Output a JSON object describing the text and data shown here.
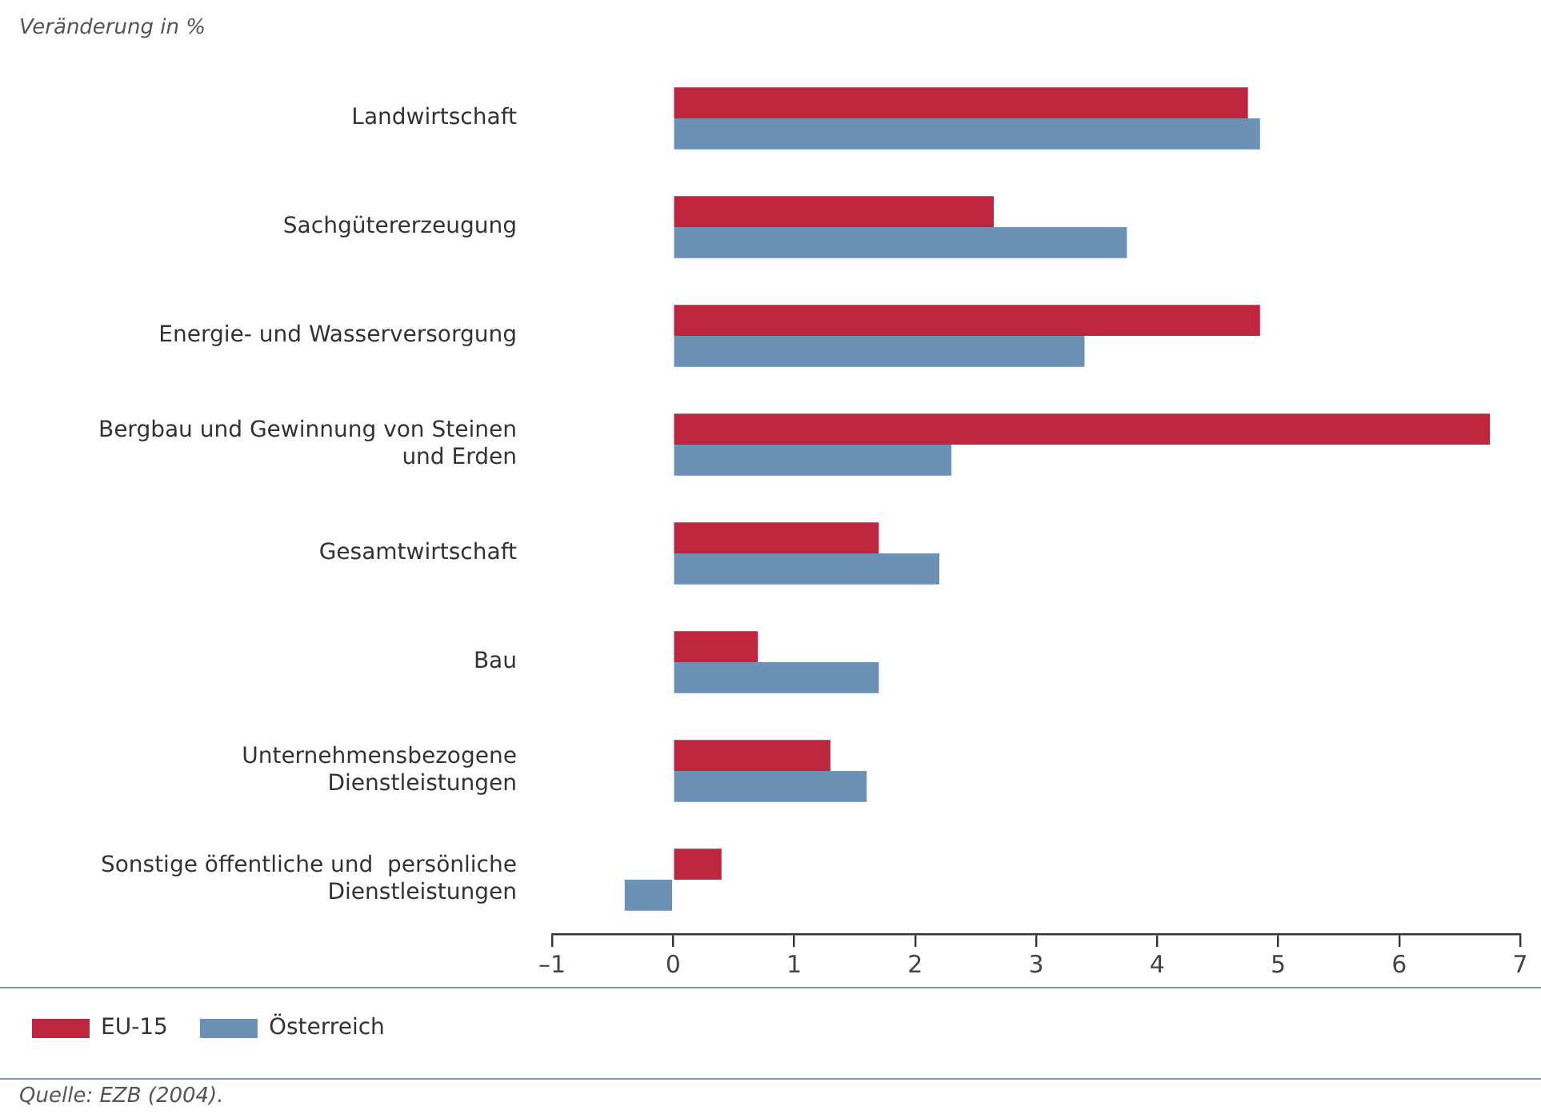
{
  "chart_data": {
    "type": "bar",
    "orientation": "horizontal",
    "xlabel": "Veränderung in %",
    "categories": [
      "Landwirtschaft",
      "Sachgütererzeugung",
      "Energie- und Wasserversorgung",
      "Bergbau und Gewinnung von Steinen und Erden",
      "Gesamtwirtschaft",
      "Bau",
      "Unternehmensbezogene Dienstleistungen",
      "Sonstige öffentliche und  persönliche Dienstleistungen"
    ],
    "series": [
      {
        "name": "EU-15",
        "color": "#be253f",
        "values": [
          4.75,
          2.65,
          4.85,
          6.75,
          1.7,
          0.7,
          1.3,
          0.4
        ]
      },
      {
        "name": "Österreich",
        "color": "#6d91b4",
        "values": [
          4.85,
          3.75,
          3.4,
          2.3,
          2.2,
          1.7,
          1.6,
          -0.4
        ]
      }
    ],
    "xlim": [
      -1,
      7
    ],
    "xticks": [
      {
        "value": -1,
        "label": "–1"
      },
      0,
      1,
      2,
      3,
      4,
      5,
      6,
      7
    ],
    "grid": false,
    "legend": "bottom left",
    "annotations": [
      "Quelle: EZB (2004)."
    ]
  }
}
